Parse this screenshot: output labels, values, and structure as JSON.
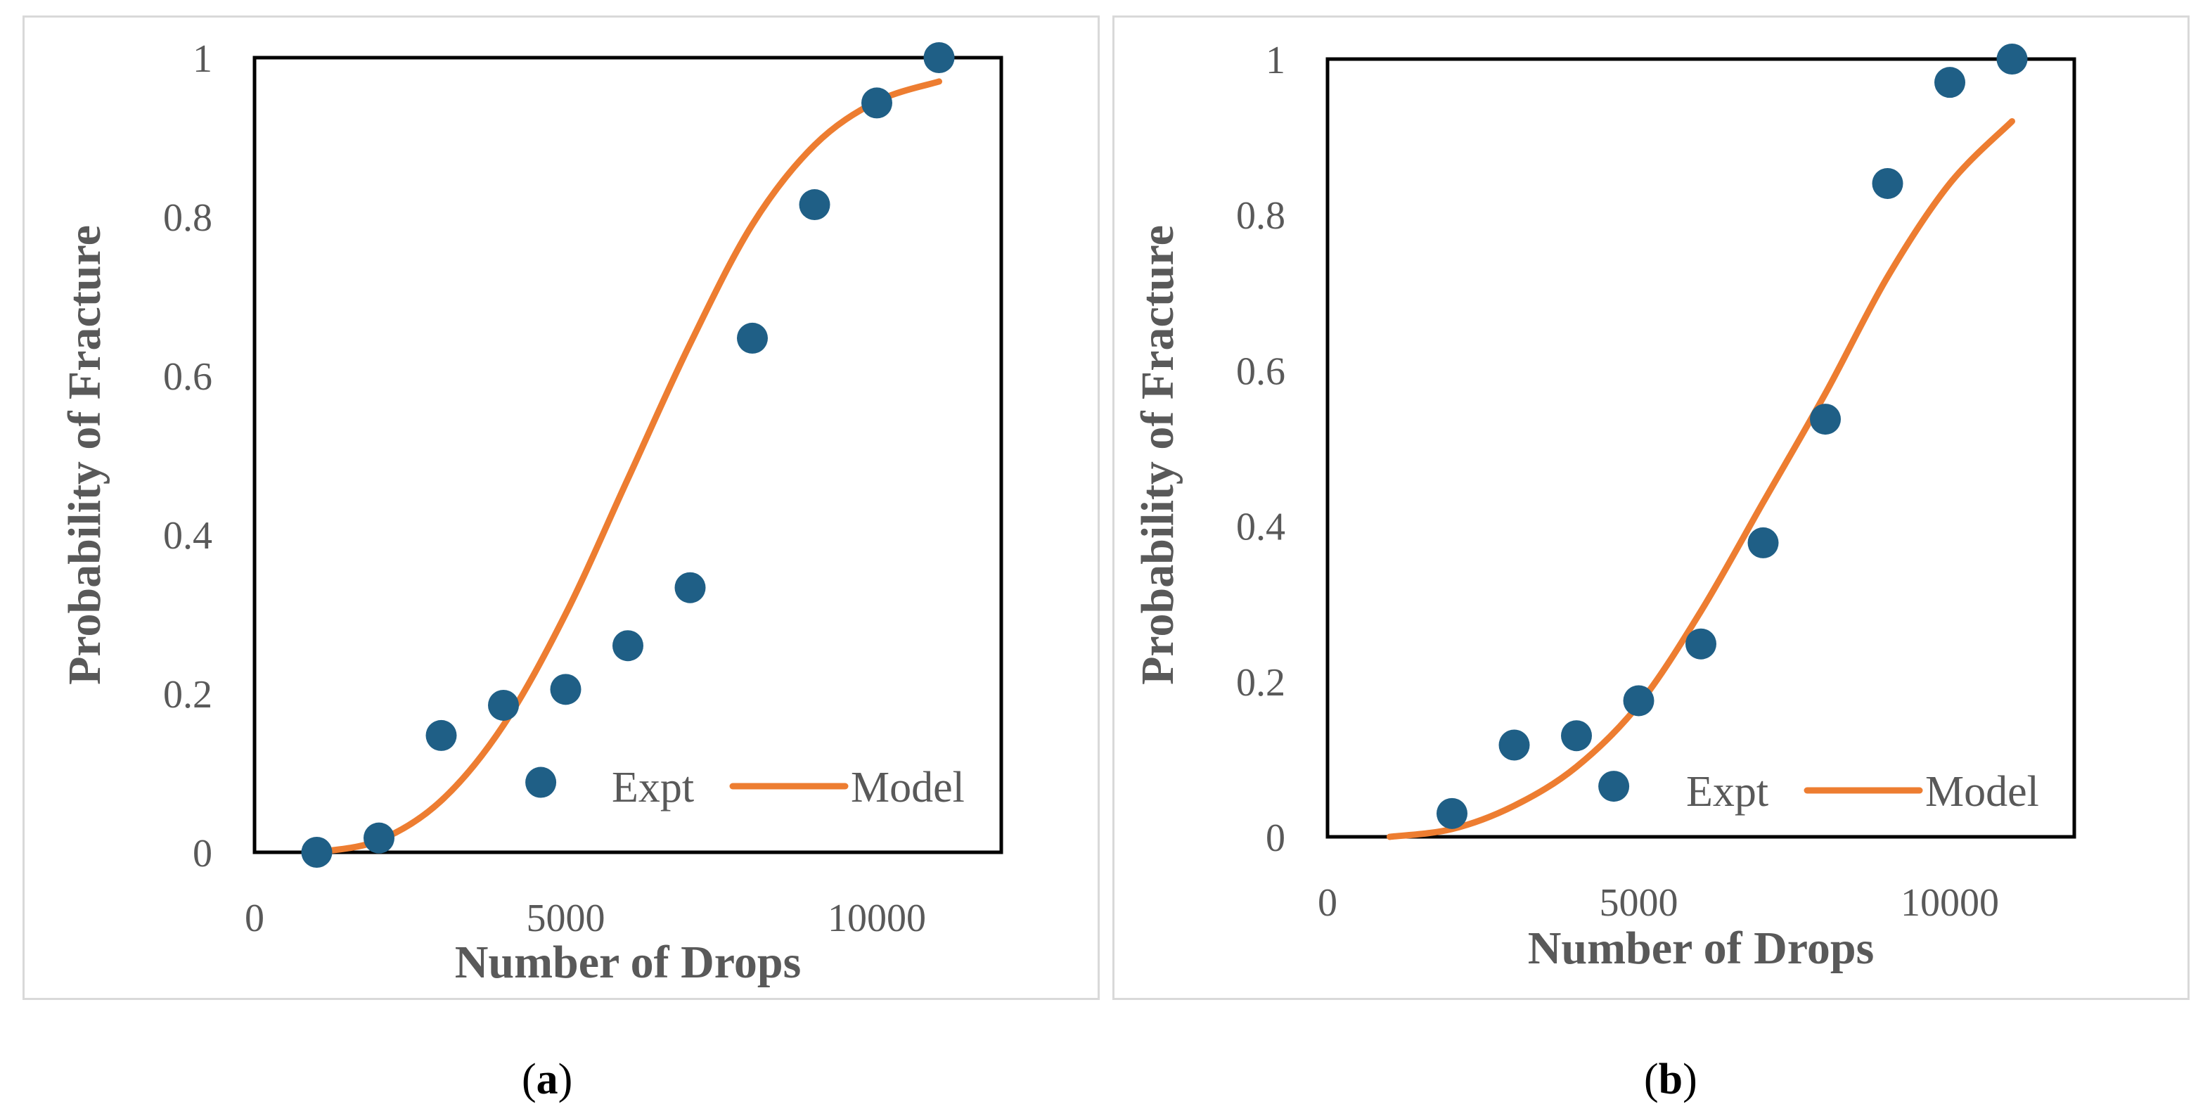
{
  "chart_data": [
    {
      "type": "scatter",
      "panel_label": "a",
      "xlabel": "Number of Drops",
      "ylabel": "Probability of Fracture",
      "xlim": [
        0,
        12000
      ],
      "ylim": [
        0,
        1
      ],
      "x_ticks": [
        0,
        5000,
        10000
      ],
      "y_ticks": [
        0,
        0.2,
        0.4,
        0.6,
        0.8,
        1
      ],
      "grid": false,
      "legend_placement": "bottom-right",
      "series": [
        {
          "name": "Expt",
          "kind": "scatter",
          "color": "#1f5f86",
          "x": [
            1000,
            2000,
            3000,
            4000,
            4600,
            5000,
            6000,
            7000,
            8000,
            9000,
            10000,
            11000
          ],
          "y": [
            0.0,
            0.018,
            0.147,
            0.185,
            0.088,
            0.205,
            0.26,
            0.333,
            0.647,
            0.815,
            0.943,
            1.0
          ]
        },
        {
          "name": "Model",
          "kind": "line",
          "color": "#ed7d31",
          "x": [
            1000,
            2000,
            3000,
            4000,
            5000,
            6000,
            7000,
            8000,
            9000,
            10000,
            11000
          ],
          "y": [
            0.0,
            0.015,
            0.065,
            0.16,
            0.3,
            0.47,
            0.64,
            0.79,
            0.89,
            0.945,
            0.97
          ]
        }
      ]
    },
    {
      "type": "scatter",
      "panel_label": "b",
      "xlabel": "Number of Drops",
      "ylabel": "Probability of Fracture",
      "xlim": [
        0,
        12000
      ],
      "ylim": [
        0,
        1
      ],
      "x_ticks": [
        0,
        5000,
        10000
      ],
      "y_ticks": [
        0,
        0.2,
        0.4,
        0.6,
        0.8,
        1
      ],
      "grid": false,
      "legend_placement": "bottom-right",
      "series": [
        {
          "name": "Expt",
          "kind": "scatter",
          "color": "#1f5f86",
          "x": [
            2000,
            3000,
            4000,
            4600,
            5000,
            6000,
            7000,
            8000,
            9000,
            10000,
            11000
          ],
          "y": [
            0.03,
            0.118,
            0.13,
            0.065,
            0.175,
            0.248,
            0.378,
            0.537,
            0.84,
            0.97,
            1.0
          ]
        },
        {
          "name": "Model",
          "kind": "line",
          "color": "#ed7d31",
          "x": [
            1000,
            2000,
            3000,
            4000,
            5000,
            6000,
            7000,
            8000,
            9000,
            10000,
            11000
          ],
          "y": [
            0.0,
            0.01,
            0.04,
            0.09,
            0.17,
            0.29,
            0.43,
            0.57,
            0.72,
            0.84,
            0.92
          ]
        }
      ]
    }
  ]
}
